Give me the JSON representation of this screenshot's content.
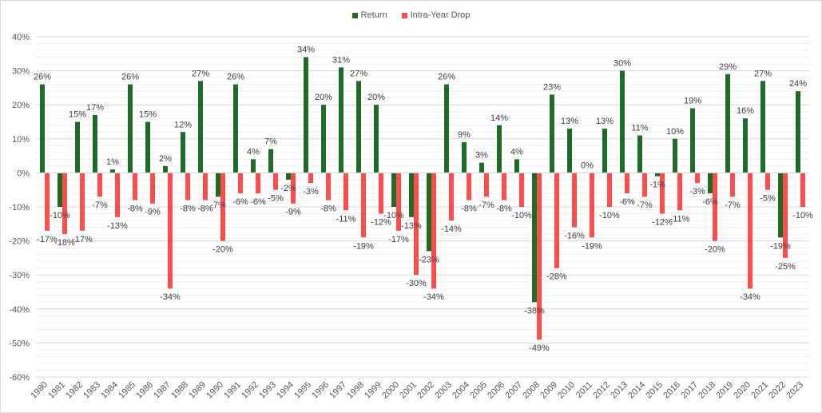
{
  "chart_data": {
    "type": "bar",
    "title": "",
    "xlabel": "",
    "ylabel": "",
    "ylim": [
      -60,
      40
    ],
    "yticks": [
      "40%",
      "30%",
      "20%",
      "10%",
      "0%",
      "-10%",
      "-20%",
      "-30%",
      "-40%",
      "-50%",
      "-60%"
    ],
    "ytick_values": [
      40,
      30,
      20,
      10,
      0,
      -10,
      -20,
      -30,
      -40,
      -50,
      -60
    ],
    "grid": true,
    "legend_position": "top-center",
    "colors": {
      "return": "#1E6B26",
      "drop": "#FF4D4D"
    },
    "categories": [
      "1980",
      "1981",
      "1982",
      "1983",
      "1984",
      "1985",
      "1986",
      "1987",
      "1988",
      "1989",
      "1990",
      "1991",
      "1992",
      "1993",
      "1994",
      "1995",
      "1996",
      "1997",
      "1998",
      "1999",
      "2000",
      "2001",
      "2002",
      "2003",
      "2004",
      "2005",
      "2006",
      "2007",
      "2008",
      "2009",
      "2010",
      "2011",
      "2012",
      "2013",
      "2014",
      "2015",
      "2016",
      "2017",
      "2018",
      "2019",
      "2020",
      "2021",
      "2022",
      "2023"
    ],
    "series": [
      {
        "name": "Return",
        "values": [
          26,
          -10,
          15,
          17,
          1,
          26,
          15,
          2,
          12,
          27,
          -7,
          26,
          4,
          7,
          -2,
          34,
          20,
          31,
          27,
          20,
          -10,
          -13,
          -23,
          26,
          9,
          3,
          14,
          4,
          -38,
          23,
          13,
          0,
          13,
          30,
          11,
          -1,
          10,
          19,
          -6,
          29,
          16,
          27,
          -19,
          24
        ],
        "labels": [
          "26%",
          "-10%",
          "15%",
          "17%",
          "1%",
          "26%",
          "15%",
          "2%",
          "12%",
          "27%",
          "-7%",
          "26%",
          "4%",
          "7%",
          "-2%",
          "34%",
          "20%",
          "31%",
          "27%",
          "20%",
          "-10%",
          "-13%",
          "-23%",
          "26%",
          "9%",
          "3%",
          "14%",
          "4%",
          "-38%",
          "23%",
          "13%",
          "0%",
          "13%",
          "30%",
          "11%",
          "-1%",
          "10%",
          "19%",
          "-6%",
          "29%",
          "16%",
          "27%",
          "-19%",
          "24%"
        ]
      },
      {
        "name": "Intra-Year Drop",
        "values": [
          -17,
          -18,
          -17,
          -7,
          -13,
          -8,
          -9,
          -34,
          -8,
          -8,
          -20,
          -6,
          -6,
          -5,
          -9,
          -3,
          -8,
          -11,
          -19,
          -12,
          -17,
          -30,
          -34,
          -14,
          -8,
          -7,
          -8,
          -10,
          -49,
          -28,
          -16,
          -19,
          -10,
          -6,
          -7,
          -12,
          -11,
          -3,
          -20,
          -7,
          -34,
          -5,
          -25,
          -10
        ],
        "labels": [
          "-17%",
          "-18%",
          "-17%",
          "-7%",
          "-13%",
          "-8%",
          "-9%",
          "-34%",
          "-8%",
          "-8%",
          "-20%",
          "-6%",
          "-6%",
          "-5%",
          "-9%",
          "-3%",
          "-8%",
          "-11%",
          "-19%",
          "-12%",
          "-17%",
          "-30%",
          "-34%",
          "-14%",
          "-8%",
          "-7%",
          "-8%",
          "-10%",
          "-49%",
          "-28%",
          "-16%",
          "-19%",
          "-10%",
          "-6%",
          "-7%",
          "-12%",
          "-11%",
          "-3%",
          "-20%",
          "-7%",
          "-34%",
          "-5%",
          "-25%",
          "-10%"
        ]
      }
    ]
  }
}
